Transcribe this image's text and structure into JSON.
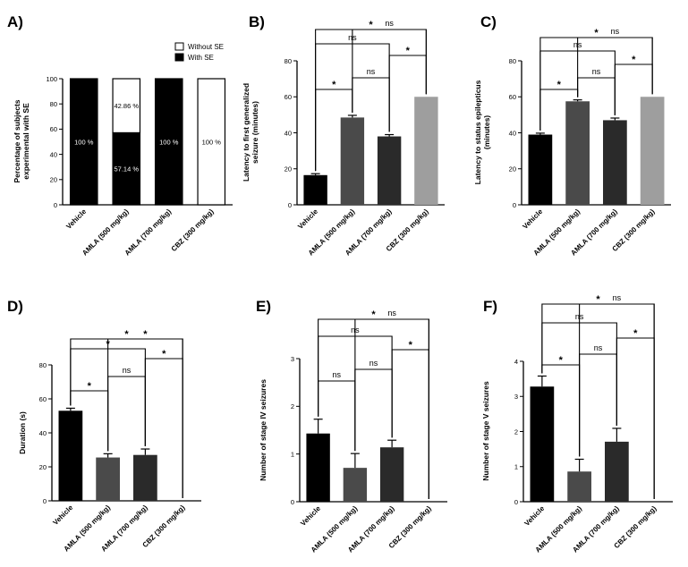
{
  "chart_data": [
    {
      "id": "A",
      "panel_label": "A)",
      "type": "bar",
      "stacked": true,
      "ylabel": "Percentage of subjects experimental with SE",
      "ylim": [
        0,
        100
      ],
      "yticks": [
        0,
        20,
        40,
        60,
        80,
        100
      ],
      "categories": [
        "Vehicle",
        "AMLA (500 mg/kg)",
        "AMLA (700 mg/kg)",
        "CBZ (300 mg/kg)"
      ],
      "series": [
        {
          "name": "With SE",
          "values": [
            100,
            57.14,
            100,
            0
          ],
          "color": "#000000"
        },
        {
          "name": "Without SE",
          "values": [
            0,
            42.86,
            0,
            100
          ],
          "color": "#ffffff"
        }
      ],
      "labels": [
        {
          "cat": 0,
          "series": 0,
          "text": "100 %"
        },
        {
          "cat": 1,
          "series": 1,
          "text": "42.86 %"
        },
        {
          "cat": 1,
          "series": 0,
          "text": "57.14 %"
        },
        {
          "cat": 2,
          "series": 0,
          "text": "100 %"
        },
        {
          "cat": 3,
          "series": 1,
          "text": "100 %"
        }
      ],
      "legend": {
        "position": "top-right",
        "items": [
          {
            "label": "Without SE",
            "color": "#ffffff"
          },
          {
            "label": "With SE",
            "color": "#000000"
          }
        ]
      }
    },
    {
      "id": "B",
      "panel_label": "B)",
      "type": "bar",
      "ylabel_lines": [
        "Latency to first generalized",
        "seizure (minutes)"
      ],
      "ylim": [
        0,
        80
      ],
      "yticks": [
        0,
        20,
        40,
        60,
        80
      ],
      "categories": [
        "Vehicle",
        "AMLA (500 mg/kg)",
        "AMLA (700 mg/kg)",
        "CBZ (300 mg/kg)"
      ],
      "values": [
        16.5,
        48.5,
        38,
        60
      ],
      "errors": [
        0.8,
        1.2,
        1.0,
        0
      ],
      "colors": [
        "#000000",
        "#4a4a4a",
        "#2a2a2a",
        "#9e9e9e"
      ],
      "brackets": [
        {
          "a": 0,
          "b": 1,
          "label": "*"
        },
        {
          "a": 1,
          "b": 2,
          "label": "ns"
        },
        {
          "a": 2,
          "b": 3,
          "label": "*"
        },
        {
          "a": 0,
          "b": 2,
          "label": "ns"
        },
        {
          "a": 1,
          "b": 3,
          "label": "ns"
        },
        {
          "a": 0,
          "b": 3,
          "label": "*"
        }
      ]
    },
    {
      "id": "C",
      "panel_label": "C)",
      "type": "bar",
      "ylabel_lines": [
        "Latency to status epilepticus",
        "(minutes)"
      ],
      "ylim": [
        0,
        80
      ],
      "yticks": [
        0,
        20,
        40,
        60,
        80
      ],
      "categories": [
        "Vehicle",
        "AMLA (500 mg/kg)",
        "AMLA (700 mg/kg)",
        "CBZ (300 mg/kg)"
      ],
      "values": [
        39,
        57.5,
        47,
        60
      ],
      "errors": [
        0.8,
        0.8,
        1.2,
        0
      ],
      "colors": [
        "#000000",
        "#4a4a4a",
        "#2a2a2a",
        "#9e9e9e"
      ],
      "brackets": [
        {
          "a": 0,
          "b": 1,
          "label": "*"
        },
        {
          "a": 1,
          "b": 2,
          "label": "ns"
        },
        {
          "a": 2,
          "b": 3,
          "label": "*"
        },
        {
          "a": 0,
          "b": 2,
          "label": "ns"
        },
        {
          "a": 1,
          "b": 3,
          "label": "ns"
        },
        {
          "a": 0,
          "b": 3,
          "label": "*"
        }
      ]
    },
    {
      "id": "D",
      "panel_label": "D)",
      "type": "bar",
      "ylabel": "Duration (s)",
      "ylim": [
        0,
        80
      ],
      "yticks": [
        0,
        20,
        40,
        60,
        80
      ],
      "categories": [
        "Vehicle",
        "AMLA (500 mg/kg)",
        "AMLA (700 mg/kg)",
        "CBZ (300 mg/kg)"
      ],
      "values": [
        53,
        25.5,
        27,
        0
      ],
      "errors": [
        1.5,
        2.2,
        3.5,
        0
      ],
      "colors": [
        "#000000",
        "#4a4a4a",
        "#2a2a2a",
        "#9e9e9e"
      ],
      "brackets": [
        {
          "a": 0,
          "b": 1,
          "label": "*"
        },
        {
          "a": 1,
          "b": 2,
          "label": "ns"
        },
        {
          "a": 2,
          "b": 3,
          "label": "*"
        },
        {
          "a": 0,
          "b": 2,
          "label": "*"
        },
        {
          "a": 1,
          "b": 3,
          "label": "*"
        },
        {
          "a": 0,
          "b": 3,
          "label": "*"
        }
      ]
    },
    {
      "id": "E",
      "panel_label": "E)",
      "type": "bar",
      "ylabel": "Number of stage IV seizures",
      "ylim": [
        0,
        3
      ],
      "yticks": [
        0,
        1,
        2,
        3
      ],
      "categories": [
        "Vehicle",
        "AMLA (500 mg/kg)",
        "AMLA (700 mg/kg)",
        "CBZ (300 mg/kg)"
      ],
      "values": [
        1.43,
        0.71,
        1.14,
        0
      ],
      "errors": [
        0.3,
        0.3,
        0.15,
        0
      ],
      "colors": [
        "#000000",
        "#4a4a4a",
        "#2a2a2a",
        "#9e9e9e"
      ],
      "brackets": [
        {
          "a": 0,
          "b": 1,
          "label": "ns"
        },
        {
          "a": 1,
          "b": 2,
          "label": "ns"
        },
        {
          "a": 2,
          "b": 3,
          "label": "*"
        },
        {
          "a": 0,
          "b": 2,
          "label": "ns"
        },
        {
          "a": 1,
          "b": 3,
          "label": "ns"
        },
        {
          "a": 0,
          "b": 3,
          "label": "*"
        }
      ]
    },
    {
      "id": "F",
      "panel_label": "F)",
      "type": "bar",
      "ylabel": "Number of stage V seizures",
      "ylim": [
        0,
        4
      ],
      "yticks": [
        0,
        1,
        2,
        3,
        4
      ],
      "categories": [
        "Vehicle",
        "AMLA (500 mg/kg)",
        "AMLA (700 mg/kg)",
        "CBZ (300 mg/kg)"
      ],
      "values": [
        3.28,
        0.86,
        1.71,
        0
      ],
      "errors": [
        0.3,
        0.35,
        0.38,
        0
      ],
      "colors": [
        "#000000",
        "#4a4a4a",
        "#2a2a2a",
        "#9e9e9e"
      ],
      "brackets": [
        {
          "a": 0,
          "b": 1,
          "label": "*"
        },
        {
          "a": 1,
          "b": 2,
          "label": "ns"
        },
        {
          "a": 2,
          "b": 3,
          "label": "*"
        },
        {
          "a": 0,
          "b": 2,
          "label": "ns"
        },
        {
          "a": 1,
          "b": 3,
          "label": "ns"
        },
        {
          "a": 0,
          "b": 3,
          "label": "*"
        }
      ]
    }
  ]
}
